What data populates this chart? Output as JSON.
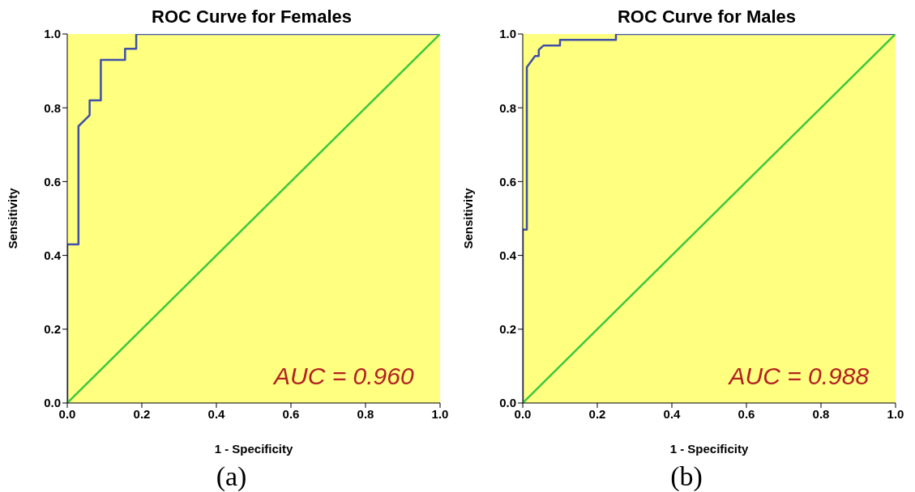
{
  "chart_data": [
    {
      "type": "line",
      "title": "ROC Curve for Females",
      "xlabel": "1 - Specificity",
      "ylabel": "Sensitivity",
      "xlim": [
        0,
        1
      ],
      "ylim": [
        0,
        1
      ],
      "xticks": [
        {
          "value": 0,
          "label": "0.0"
        },
        {
          "value": 0.2,
          "label": "0.2"
        },
        {
          "value": 0.4,
          "label": "0.4"
        },
        {
          "value": 0.6,
          "label": "0.6"
        },
        {
          "value": 0.8,
          "label": "0.8"
        },
        {
          "value": 1,
          "label": "1.0"
        }
      ],
      "yticks": [
        {
          "value": 0,
          "label": "0.0"
        },
        {
          "value": 0.2,
          "label": "0.2"
        },
        {
          "value": 0.4,
          "label": "0.4"
        },
        {
          "value": 0.6,
          "label": "0.6"
        },
        {
          "value": 0.8,
          "label": "0.8"
        },
        {
          "value": 1,
          "label": "1.0"
        }
      ],
      "marker": "none",
      "line_style": "solid",
      "grid": false,
      "series": [
        {
          "color": "#4050a8",
          "x": [
            0,
            0,
            0.03,
            0.03,
            0.06,
            0.06,
            0.09,
            0.09,
            0.155,
            0.155,
            0.185,
            0.185,
            1
          ],
          "values": [
            0,
            0.43,
            0.43,
            0.75,
            0.78,
            0.82,
            0.82,
            0.93,
            0.93,
            0.96,
            0.96,
            1,
            1
          ]
        },
        {
          "color": "#3cc83c",
          "x": [
            0,
            1
          ],
          "values": [
            0,
            1
          ]
        }
      ],
      "annotations": [
        "AUC = 0.960",
        "(a)"
      ]
    },
    {
      "type": "line",
      "title": "ROC Curve for Males",
      "xlabel": "1 - Specificity",
      "ylabel": "Sensitivity",
      "xlim": [
        0,
        1
      ],
      "ylim": [
        0,
        1
      ],
      "xticks": [
        {
          "value": 0,
          "label": "0.0"
        },
        {
          "value": 0.2,
          "label": "0.2"
        },
        {
          "value": 0.4,
          "label": "0.4"
        },
        {
          "value": 0.6,
          "label": "0.6"
        },
        {
          "value": 0.8,
          "label": "0.8"
        },
        {
          "value": 1,
          "label": "1.0"
        }
      ],
      "yticks": [
        {
          "value": 0,
          "label": "0.0"
        },
        {
          "value": 0.2,
          "label": "0.2"
        },
        {
          "value": 0.4,
          "label": "0.4"
        },
        {
          "value": 0.6,
          "label": "0.6"
        },
        {
          "value": 0.8,
          "label": "0.8"
        },
        {
          "value": 1,
          "label": "1.0"
        }
      ],
      "marker": "none",
      "line_style": "solid",
      "grid": false,
      "series": [
        {
          "color": "#4050a8",
          "x": [
            0,
            0,
            0.011,
            0.011,
            0.033,
            0.043,
            0.043,
            0.056,
            0.1,
            0.1,
            0.25,
            0.25,
            1
          ],
          "values": [
            0,
            0.47,
            0.47,
            0.91,
            0.94,
            0.94,
            0.957,
            0.969,
            0.969,
            0.984,
            0.984,
            1,
            1
          ]
        },
        {
          "color": "#3cc83c",
          "x": [
            0,
            1
          ],
          "values": [
            0,
            1
          ]
        }
      ],
      "annotations": [
        "AUC = 0.988",
        "(b)"
      ]
    }
  ]
}
